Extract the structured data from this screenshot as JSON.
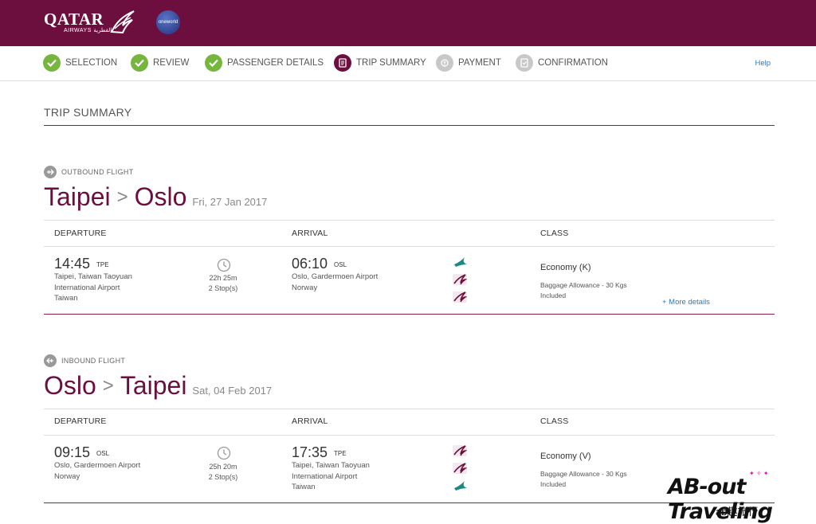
{
  "brand": {
    "name": "QATAR",
    "sub": "AIRWAYS القطرية",
    "alliance": "oneworld"
  },
  "steps": [
    {
      "label": "SELECTION",
      "state": "done"
    },
    {
      "label": "REVIEW",
      "state": "done"
    },
    {
      "label": "PASSENGER DETAILS",
      "state": "done"
    },
    {
      "label": "TRIP SUMMARY",
      "state": "current"
    },
    {
      "label": "PAYMENT",
      "state": "todo"
    },
    {
      "label": "CONFIRMATION",
      "state": "todo"
    }
  ],
  "help_label": "Help",
  "page_title": "TRIP SUMMARY",
  "columns": {
    "departure": "DEPARTURE",
    "arrival": "ARRIVAL",
    "class": "CLASS"
  },
  "outbound": {
    "label": "OUTBOUND FLIGHT",
    "from": "Taipei",
    "to": "Oslo",
    "date": "Fri, 27 Jan 2017",
    "dep_time": "14:45",
    "dep_code": "TPE",
    "dep_addr": [
      "Taipei, Taiwan Taoyuan",
      "International Airport",
      "Taiwan"
    ],
    "duration": "22h 25m",
    "stops": "2 Stop(s)",
    "arr_time": "06:10",
    "arr_code": "OSL",
    "arr_addr": [
      "Oslo, Gardermoen Airport",
      "Norway"
    ],
    "carriers": [
      "cathay-pacific",
      "qatar-airways",
      "qatar-airways"
    ],
    "class": "Economy (K)",
    "baggage": "Baggage Allowance - 30 Kgs",
    "included": "Included",
    "more": "+ More details"
  },
  "inbound": {
    "label": "INBOUND FLIGHT",
    "from": "Oslo",
    "to": "Taipei",
    "date": "Sat, 04 Feb 2017",
    "dep_time": "09:15",
    "dep_code": "OSL",
    "dep_addr": [
      "Oslo, Gardermoen Airport",
      "Norway"
    ],
    "duration": "25h 20m",
    "stops": "2 Stop(s)",
    "arr_time": "17:35",
    "arr_code": "TPE",
    "arr_addr": [
      "Taipei, Taiwan Taoyuan",
      "International Airport",
      "Taiwan"
    ],
    "carriers": [
      "qatar-airways",
      "qatar-airways",
      "cathay-pacific"
    ],
    "class": "Economy (V)",
    "baggage": "Baggage Allowance - 30 Kgs",
    "included": "Included"
  },
  "watermark": {
    "title": "AB-out Traveling",
    "sub": "ab趣旅行"
  },
  "colors": {
    "brand": "#6d0f3e",
    "done": "#77b63e",
    "link": "#2a7abf"
  }
}
